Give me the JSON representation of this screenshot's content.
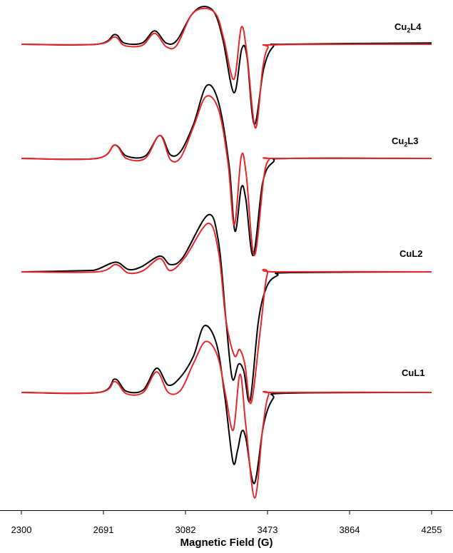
{
  "chart_data": {
    "type": "line",
    "xlabel": "Magnetic Field (G)",
    "ylabel": "",
    "xlim": [
      2300,
      4255
    ],
    "x_ticks": [
      "2300",
      "2691",
      "3082",
      "3473",
      "3864",
      "4255"
    ],
    "grid": false,
    "colors": {
      "experimental": "#000000",
      "simulated": "#e8262a"
    },
    "spectra": [
      {
        "label_main": "Cu",
        "label_sub": "2",
        "label_rest": "L4",
        "series": [
          {
            "color": "#000000",
            "points": [
              [
                2300,
                0
              ],
              [
                2660,
                0
              ],
              [
                2745,
                0.4
              ],
              [
                2790,
                0.05
              ],
              [
                2875,
                0.05
              ],
              [
                2935,
                0.55
              ],
              [
                2990,
                0.05
              ],
              [
                3040,
                0.15
              ],
              [
                3110,
                1.2
              ],
              [
                3165,
                1.55
              ],
              [
                3220,
                1.3
              ],
              [
                3260,
                0.2
              ],
              [
                3313,
                -2.0
              ],
              [
                3350,
                -0.2
              ],
              [
                3375,
                -0.5
              ],
              [
                3410,
                -3.3
              ],
              [
                3455,
                -1.0
              ],
              [
                3500,
                -0.1
              ],
              [
                3560,
                0
              ],
              [
                4255,
                0.05
              ]
            ]
          },
          {
            "color": "#e8262a",
            "points": [
              [
                2300,
                0
              ],
              [
                2660,
                0
              ],
              [
                2745,
                0.3
              ],
              [
                2790,
                -0.05
              ],
              [
                2875,
                -0.05
              ],
              [
                2935,
                0.45
              ],
              [
                2990,
                -0.1
              ],
              [
                3040,
                -0.05
              ],
              [
                3110,
                1.2
              ],
              [
                3175,
                1.48
              ],
              [
                3230,
                1.2
              ],
              [
                3265,
                0.2
              ],
              [
                3313,
                -1.45
              ],
              [
                3348,
                0.7
              ],
              [
                3375,
                -0.4
              ],
              [
                3415,
                -3.45
              ],
              [
                3450,
                -1.0
              ],
              [
                3475,
                -0.15
              ],
              [
                3520,
                -0.02
              ],
              [
                4255,
                0
              ]
            ]
          }
        ]
      },
      {
        "label_main": "Cu",
        "label_sub": "2",
        "label_rest": "L3",
        "series": [
          {
            "color": "#000000",
            "points": [
              [
                2300,
                0
              ],
              [
                2660,
                0
              ],
              [
                2745,
                0.55
              ],
              [
                2800,
                0.1
              ],
              [
                2890,
                0.1
              ],
              [
                2960,
                0.95
              ],
              [
                3010,
                0.15
              ],
              [
                3060,
                0.3
              ],
              [
                3120,
                1.4
              ],
              [
                3183,
                3.0
              ],
              [
                3240,
                2.3
              ],
              [
                3290,
                -0.3
              ],
              [
                3318,
                -3.0
              ],
              [
                3348,
                -1.2
              ],
              [
                3370,
                -1.7
              ],
              [
                3405,
                -4.0
              ],
              [
                3450,
                -1.0
              ],
              [
                3500,
                -0.15
              ],
              [
                3580,
                0
              ],
              [
                4255,
                0
              ]
            ]
          },
          {
            "color": "#e8262a",
            "points": [
              [
                2300,
                0
              ],
              [
                2660,
                0
              ],
              [
                2745,
                0.55
              ],
              [
                2800,
                0
              ],
              [
                2890,
                0
              ],
              [
                2960,
                0.95
              ],
              [
                3010,
                -0.05
              ],
              [
                3060,
                0.05
              ],
              [
                3120,
                1.3
              ],
              [
                3180,
                2.55
              ],
              [
                3240,
                2.0
              ],
              [
                3285,
                -0.2
              ],
              [
                3315,
                -2.75
              ],
              [
                3348,
                0.1
              ],
              [
                3372,
                -0.7
              ],
              [
                3410,
                -4.0
              ],
              [
                3455,
                -0.8
              ],
              [
                3480,
                -0.05
              ],
              [
                3520,
                0
              ],
              [
                4255,
                0
              ]
            ]
          }
        ]
      },
      {
        "label_main": "CuL2",
        "label_sub": "",
        "label_rest": "",
        "series": [
          {
            "color": "#000000",
            "points": [
              [
                2300,
                0
              ],
              [
                2600,
                0.05
              ],
              [
                2660,
                0.1
              ],
              [
                2750,
                0.4
              ],
              [
                2810,
                0.1
              ],
              [
                2870,
                0.2
              ],
              [
                2960,
                0.65
              ],
              [
                3010,
                0.3
              ],
              [
                3070,
                0.6
              ],
              [
                3190,
                2.35
              ],
              [
                3240,
                1.2
              ],
              [
                3275,
                -2.0
              ],
              [
                3305,
                -4.4
              ],
              [
                3335,
                -3.8
              ],
              [
                3360,
                -4.1
              ],
              [
                3390,
                -5.3
              ],
              [
                3430,
                -2.0
              ],
              [
                3470,
                -0.6
              ],
              [
                3520,
                -0.15
              ],
              [
                3580,
                -0.03
              ],
              [
                4255,
                0
              ]
            ]
          },
          {
            "color": "#e8262a",
            "points": [
              [
                2300,
                0
              ],
              [
                2660,
                0
              ],
              [
                2750,
                0.3
              ],
              [
                2810,
                -0.05
              ],
              [
                2880,
                0.05
              ],
              [
                2960,
                0.55
              ],
              [
                3010,
                0.05
              ],
              [
                3080,
                0.6
              ],
              [
                3190,
                2.0
              ],
              [
                3240,
                0.8
              ],
              [
                3275,
                -2.0
              ],
              [
                3315,
                -3.45
              ],
              [
                3340,
                -3.2
              ],
              [
                3365,
                -3.8
              ],
              [
                3395,
                -5.4
              ],
              [
                3440,
                -2.3
              ],
              [
                3472,
                -0.1
              ],
              [
                3520,
                0
              ],
              [
                4255,
                0
              ]
            ]
          }
        ]
      },
      {
        "label_main": "CuL1",
        "label_sub": "",
        "label_rest": "",
        "series": [
          {
            "color": "#000000",
            "points": [
              [
                2300,
                0
              ],
              [
                2670,
                0
              ],
              [
                2745,
                0.55
              ],
              [
                2800,
                0.05
              ],
              [
                2880,
                0.1
              ],
              [
                2945,
                1.0
              ],
              [
                3000,
                0.3
              ],
              [
                3060,
                0.65
              ],
              [
                3120,
                1.5
              ],
              [
                3172,
                2.75
              ],
              [
                3230,
                2.0
              ],
              [
                3270,
                -0.2
              ],
              [
                3308,
                -2.85
              ],
              [
                3330,
                -2.4
              ],
              [
                3350,
                -1.6
              ],
              [
                3370,
                -1.9
              ],
              [
                3410,
                -3.75
              ],
              [
                3455,
                -1.3
              ],
              [
                3500,
                -0.25
              ],
              [
                3560,
                -0.03
              ],
              [
                4255,
                0
              ]
            ]
          },
          {
            "color": "#e8262a",
            "points": [
              [
                2300,
                0
              ],
              [
                2670,
                0
              ],
              [
                2745,
                0.45
              ],
              [
                2800,
                -0.05
              ],
              [
                2880,
                0
              ],
              [
                2945,
                0.85
              ],
              [
                3000,
                0
              ],
              [
                3060,
                0.1
              ],
              [
                3120,
                1.2
              ],
              [
                3178,
                2.1
              ],
              [
                3235,
                1.5
              ],
              [
                3275,
                -0.2
              ],
              [
                3310,
                -1.55
              ],
              [
                3342,
                0.75
              ],
              [
                3370,
                -1.4
              ],
              [
                3412,
                -4.35
              ],
              [
                3450,
                -1.5
              ],
              [
                3478,
                -0.1
              ],
              [
                3520,
                0
              ],
              [
                4255,
                0
              ]
            ]
          }
        ]
      }
    ]
  }
}
